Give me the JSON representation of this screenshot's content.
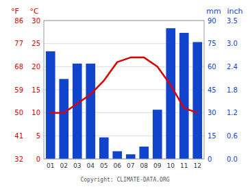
{
  "chart_data": {
    "type": "bar",
    "categories": [
      "01",
      "02",
      "03",
      "04",
      "05",
      "06",
      "07",
      "08",
      "09",
      "10",
      "11",
      "12"
    ],
    "series": [
      {
        "type": "bar",
        "color": "#1144cc",
        "values": [
          70,
          52,
          62,
          62,
          14,
          5,
          3,
          8,
          32,
          85,
          82,
          76
        ]
      },
      {
        "type": "line",
        "axis": "y2",
        "color": "#dd0000",
        "values": [
          10,
          10,
          12,
          14,
          17,
          21,
          22,
          22,
          20,
          16,
          11,
          10
        ]
      }
    ],
    "ylabel": "mm",
    "ylim": [
      0,
      90
    ],
    "yticks": [
      0,
      15,
      30,
      45,
      60,
      75,
      90
    ],
    "y_outer_label": "inch",
    "y_outer_ticks": [
      {
        "value": 0,
        "label": "0.0"
      },
      {
        "value": 15,
        "label": "0.6"
      },
      {
        "value": 30,
        "label": "1.2"
      },
      {
        "value": 45,
        "label": "1.8"
      },
      {
        "value": 60,
        "label": "2.4"
      },
      {
        "value": 75,
        "label": "3.0"
      },
      {
        "value": 90,
        "label": "3.5"
      }
    ],
    "y2label": "°C",
    "y2lim": [
      0,
      30
    ],
    "y2ticks": [
      0,
      5,
      10,
      15,
      20,
      25,
      30
    ],
    "y2_outer_label": "°F",
    "y2_outer_ticks": [
      {
        "value": 0,
        "label": "32"
      },
      {
        "value": 5,
        "label": "41"
      },
      {
        "value": 10,
        "label": "50"
      },
      {
        "value": 15,
        "label": "59"
      },
      {
        "value": 20,
        "label": "68"
      },
      {
        "value": 25,
        "label": "77"
      },
      {
        "value": 30,
        "label": "86"
      }
    ],
    "annotations": [
      "Copyright: CLIMATE-DATA.ORG"
    ],
    "grid": true
  }
}
